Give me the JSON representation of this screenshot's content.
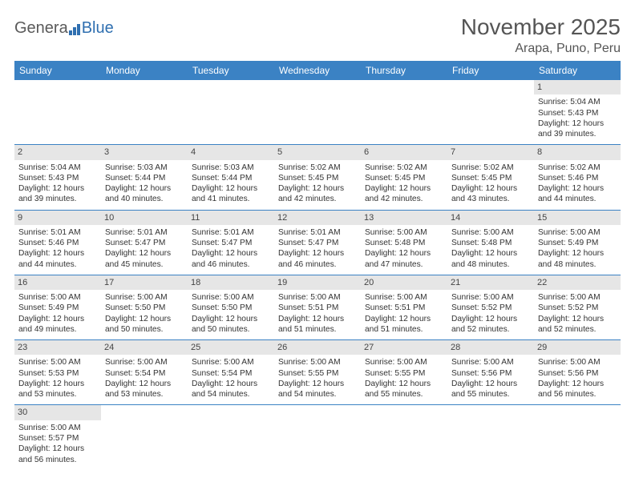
{
  "logo": {
    "text1": "Genera",
    "text2": "Blue"
  },
  "header": {
    "month_title": "November 2025",
    "location": "Arapa, Puno, Peru"
  },
  "colors": {
    "header_bg": "#3b82c4",
    "header_text": "#ffffff",
    "daynum_bg": "#e6e6e6",
    "rule": "#3b82c4"
  },
  "dayLabels": [
    "Sunday",
    "Monday",
    "Tuesday",
    "Wednesday",
    "Thursday",
    "Friday",
    "Saturday"
  ],
  "weeks": [
    [
      null,
      null,
      null,
      null,
      null,
      null,
      {
        "n": "1",
        "sr": "Sunrise: 5:04 AM",
        "ss": "Sunset: 5:43 PM",
        "dl1": "Daylight: 12 hours",
        "dl2": "and 39 minutes."
      }
    ],
    [
      {
        "n": "2",
        "sr": "Sunrise: 5:04 AM",
        "ss": "Sunset: 5:43 PM",
        "dl1": "Daylight: 12 hours",
        "dl2": "and 39 minutes."
      },
      {
        "n": "3",
        "sr": "Sunrise: 5:03 AM",
        "ss": "Sunset: 5:44 PM",
        "dl1": "Daylight: 12 hours",
        "dl2": "and 40 minutes."
      },
      {
        "n": "4",
        "sr": "Sunrise: 5:03 AM",
        "ss": "Sunset: 5:44 PM",
        "dl1": "Daylight: 12 hours",
        "dl2": "and 41 minutes."
      },
      {
        "n": "5",
        "sr": "Sunrise: 5:02 AM",
        "ss": "Sunset: 5:45 PM",
        "dl1": "Daylight: 12 hours",
        "dl2": "and 42 minutes."
      },
      {
        "n": "6",
        "sr": "Sunrise: 5:02 AM",
        "ss": "Sunset: 5:45 PM",
        "dl1": "Daylight: 12 hours",
        "dl2": "and 42 minutes."
      },
      {
        "n": "7",
        "sr": "Sunrise: 5:02 AM",
        "ss": "Sunset: 5:45 PM",
        "dl1": "Daylight: 12 hours",
        "dl2": "and 43 minutes."
      },
      {
        "n": "8",
        "sr": "Sunrise: 5:02 AM",
        "ss": "Sunset: 5:46 PM",
        "dl1": "Daylight: 12 hours",
        "dl2": "and 44 minutes."
      }
    ],
    [
      {
        "n": "9",
        "sr": "Sunrise: 5:01 AM",
        "ss": "Sunset: 5:46 PM",
        "dl1": "Daylight: 12 hours",
        "dl2": "and 44 minutes."
      },
      {
        "n": "10",
        "sr": "Sunrise: 5:01 AM",
        "ss": "Sunset: 5:47 PM",
        "dl1": "Daylight: 12 hours",
        "dl2": "and 45 minutes."
      },
      {
        "n": "11",
        "sr": "Sunrise: 5:01 AM",
        "ss": "Sunset: 5:47 PM",
        "dl1": "Daylight: 12 hours",
        "dl2": "and 46 minutes."
      },
      {
        "n": "12",
        "sr": "Sunrise: 5:01 AM",
        "ss": "Sunset: 5:47 PM",
        "dl1": "Daylight: 12 hours",
        "dl2": "and 46 minutes."
      },
      {
        "n": "13",
        "sr": "Sunrise: 5:00 AM",
        "ss": "Sunset: 5:48 PM",
        "dl1": "Daylight: 12 hours",
        "dl2": "and 47 minutes."
      },
      {
        "n": "14",
        "sr": "Sunrise: 5:00 AM",
        "ss": "Sunset: 5:48 PM",
        "dl1": "Daylight: 12 hours",
        "dl2": "and 48 minutes."
      },
      {
        "n": "15",
        "sr": "Sunrise: 5:00 AM",
        "ss": "Sunset: 5:49 PM",
        "dl1": "Daylight: 12 hours",
        "dl2": "and 48 minutes."
      }
    ],
    [
      {
        "n": "16",
        "sr": "Sunrise: 5:00 AM",
        "ss": "Sunset: 5:49 PM",
        "dl1": "Daylight: 12 hours",
        "dl2": "and 49 minutes."
      },
      {
        "n": "17",
        "sr": "Sunrise: 5:00 AM",
        "ss": "Sunset: 5:50 PM",
        "dl1": "Daylight: 12 hours",
        "dl2": "and 50 minutes."
      },
      {
        "n": "18",
        "sr": "Sunrise: 5:00 AM",
        "ss": "Sunset: 5:50 PM",
        "dl1": "Daylight: 12 hours",
        "dl2": "and 50 minutes."
      },
      {
        "n": "19",
        "sr": "Sunrise: 5:00 AM",
        "ss": "Sunset: 5:51 PM",
        "dl1": "Daylight: 12 hours",
        "dl2": "and 51 minutes."
      },
      {
        "n": "20",
        "sr": "Sunrise: 5:00 AM",
        "ss": "Sunset: 5:51 PM",
        "dl1": "Daylight: 12 hours",
        "dl2": "and 51 minutes."
      },
      {
        "n": "21",
        "sr": "Sunrise: 5:00 AM",
        "ss": "Sunset: 5:52 PM",
        "dl1": "Daylight: 12 hours",
        "dl2": "and 52 minutes."
      },
      {
        "n": "22",
        "sr": "Sunrise: 5:00 AM",
        "ss": "Sunset: 5:52 PM",
        "dl1": "Daylight: 12 hours",
        "dl2": "and 52 minutes."
      }
    ],
    [
      {
        "n": "23",
        "sr": "Sunrise: 5:00 AM",
        "ss": "Sunset: 5:53 PM",
        "dl1": "Daylight: 12 hours",
        "dl2": "and 53 minutes."
      },
      {
        "n": "24",
        "sr": "Sunrise: 5:00 AM",
        "ss": "Sunset: 5:54 PM",
        "dl1": "Daylight: 12 hours",
        "dl2": "and 53 minutes."
      },
      {
        "n": "25",
        "sr": "Sunrise: 5:00 AM",
        "ss": "Sunset: 5:54 PM",
        "dl1": "Daylight: 12 hours",
        "dl2": "and 54 minutes."
      },
      {
        "n": "26",
        "sr": "Sunrise: 5:00 AM",
        "ss": "Sunset: 5:55 PM",
        "dl1": "Daylight: 12 hours",
        "dl2": "and 54 minutes."
      },
      {
        "n": "27",
        "sr": "Sunrise: 5:00 AM",
        "ss": "Sunset: 5:55 PM",
        "dl1": "Daylight: 12 hours",
        "dl2": "and 55 minutes."
      },
      {
        "n": "28",
        "sr": "Sunrise: 5:00 AM",
        "ss": "Sunset: 5:56 PM",
        "dl1": "Daylight: 12 hours",
        "dl2": "and 55 minutes."
      },
      {
        "n": "29",
        "sr": "Sunrise: 5:00 AM",
        "ss": "Sunset: 5:56 PM",
        "dl1": "Daylight: 12 hours",
        "dl2": "and 56 minutes."
      }
    ],
    [
      {
        "n": "30",
        "sr": "Sunrise: 5:00 AM",
        "ss": "Sunset: 5:57 PM",
        "dl1": "Daylight: 12 hours",
        "dl2": "and 56 minutes."
      },
      null,
      null,
      null,
      null,
      null,
      null
    ]
  ]
}
